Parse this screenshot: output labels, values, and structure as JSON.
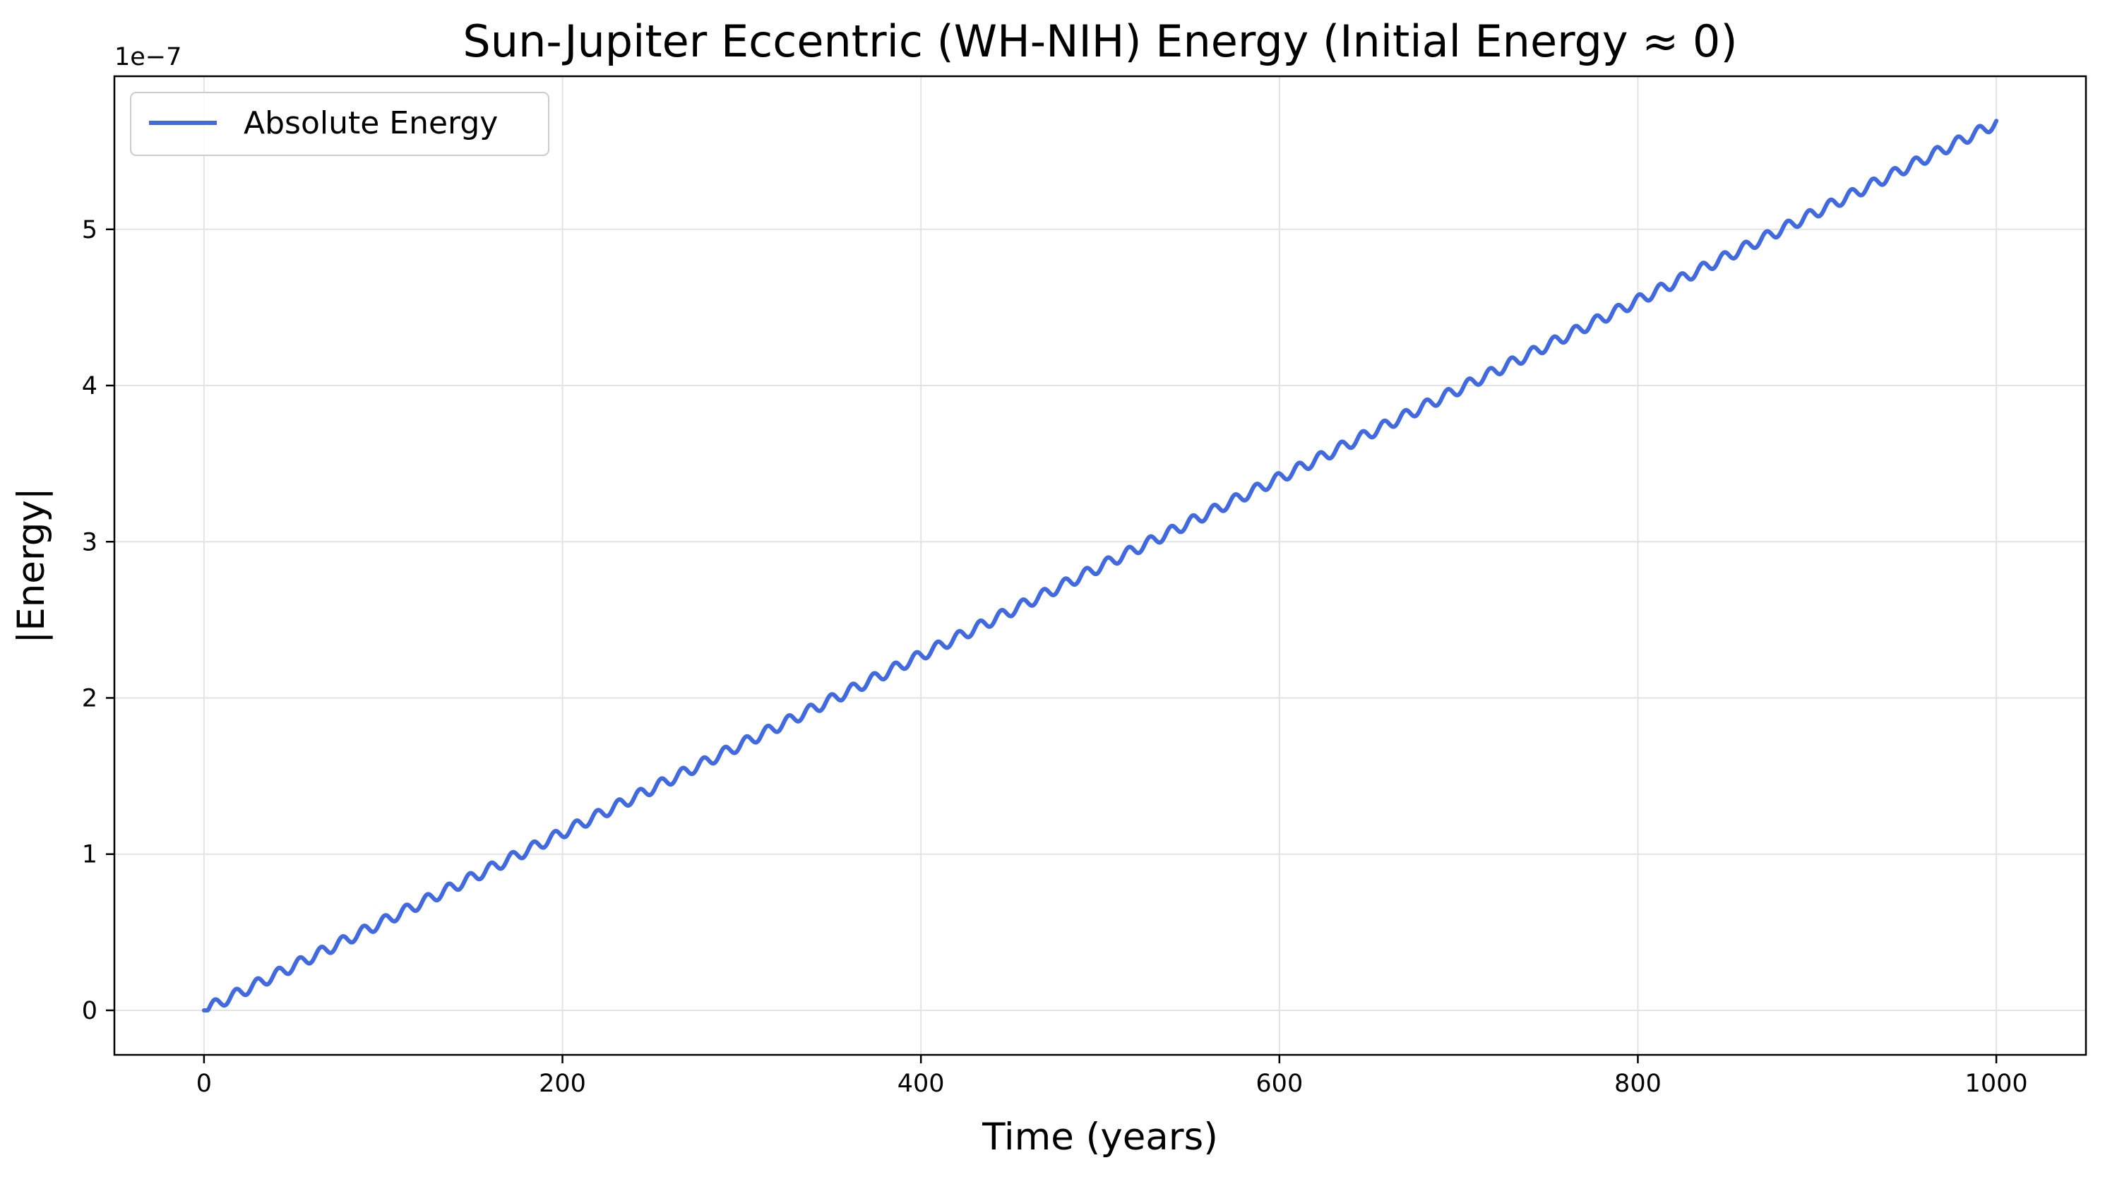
{
  "chart_data": {
    "type": "line",
    "title": "Sun-Jupiter Eccentric (WH-NIH) Energy (Initial Energy ≈ 0)",
    "xlabel": "Time (years)",
    "ylabel": "|Energy|",
    "y_offset_text": "1e−7",
    "y_multiplier": 1e-07,
    "xlim": [
      -50,
      1050
    ],
    "ylim": [
      -0.285,
      5.98
    ],
    "x_ticks": [
      0,
      200,
      400,
      600,
      800,
      1000
    ],
    "x_tick_labels": [
      "0",
      "200",
      "400",
      "600",
      "800",
      "1000"
    ],
    "y_ticks": [
      0,
      1,
      2,
      3,
      4,
      5
    ],
    "y_tick_labels": [
      "0",
      "1",
      "2",
      "3",
      "4",
      "5"
    ],
    "grid": true,
    "legend_position": "upper-left",
    "series": [
      {
        "name": "Absolute Energy",
        "color": "#4169e1",
        "x_start": 0,
        "x_end": 1000,
        "y_start": 0.0,
        "y_end": 5.68,
        "oscillation_period_years": 11.86,
        "oscillation_amplitude": 0.035
      }
    ]
  }
}
